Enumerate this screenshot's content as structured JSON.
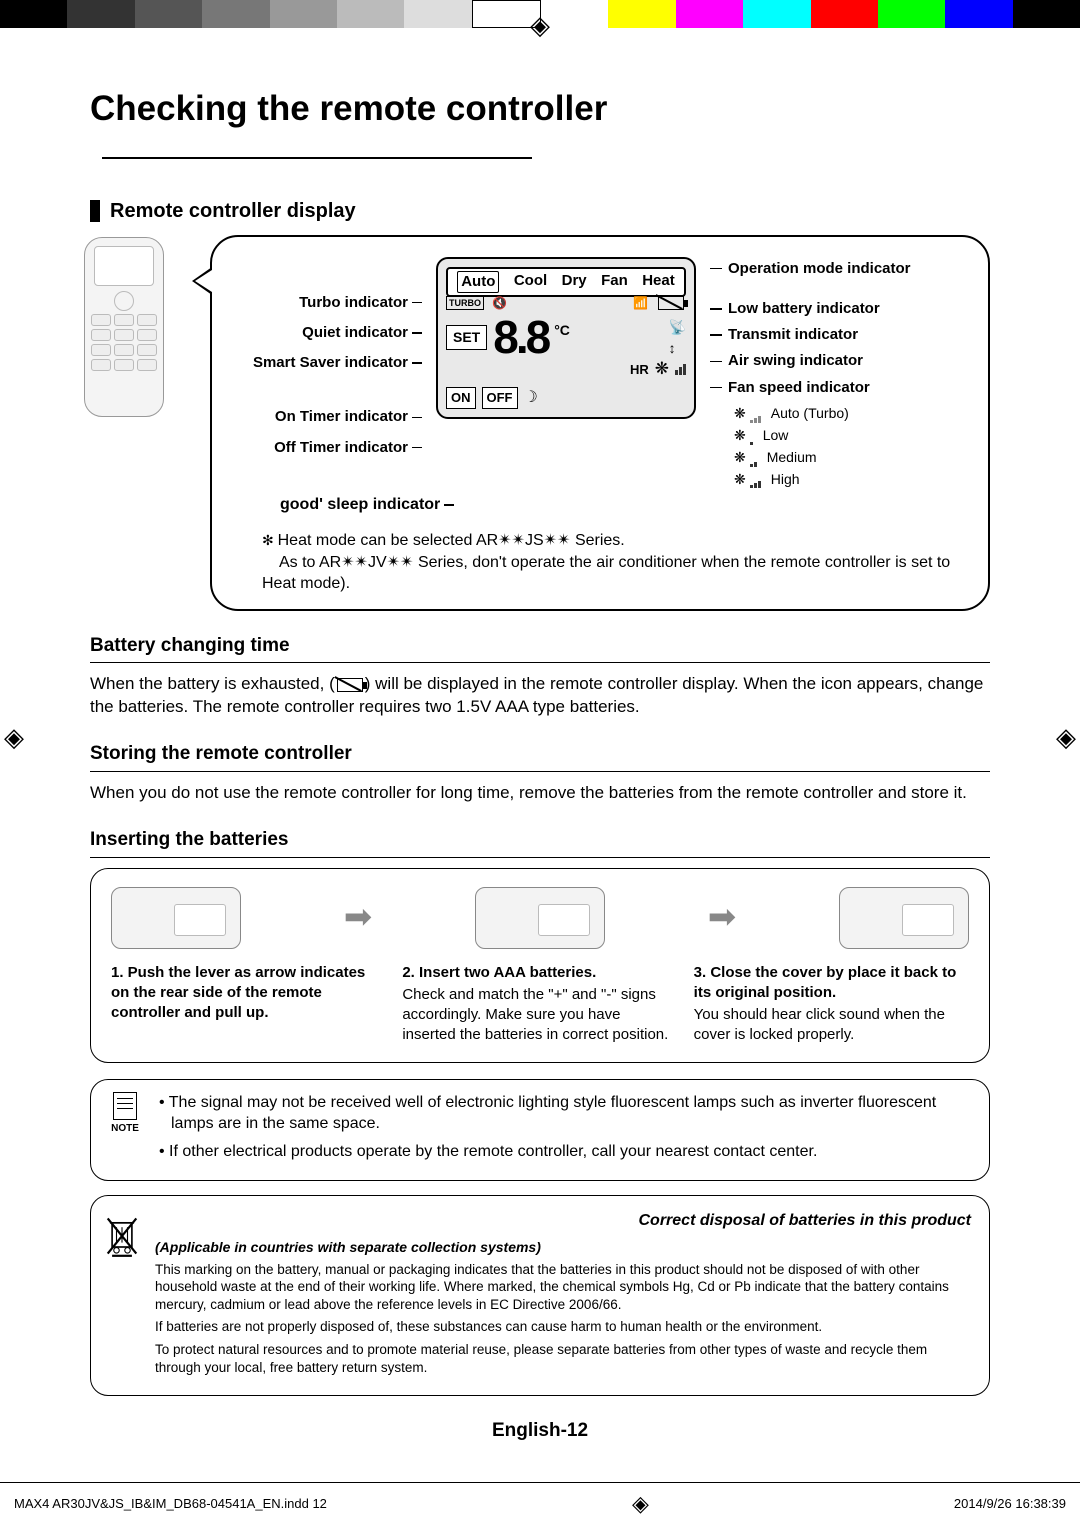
{
  "colorBar": [
    "#000000",
    "#333333",
    "#555555",
    "#777777",
    "#999999",
    "#bbbbbb",
    "#dddddd",
    "#ffffff",
    "#ffffff",
    "#ffff00",
    "#ff00ff",
    "#00ffff",
    "#ff0000",
    "#00ff00",
    "#0000ff",
    "#000000"
  ],
  "title": "Checking the remote controller",
  "sec1": {
    "title": "Remote controller display",
    "leftLabels": [
      "Turbo indicator",
      "Quiet indicator",
      "Smart Saver indicator",
      "On Timer indicator",
      "Off Timer indicator"
    ],
    "goodSleep": "good' sleep indicator",
    "lcd": {
      "modes": [
        "Auto",
        "Cool",
        "Dry",
        "Fan",
        "Heat"
      ],
      "set": "SET",
      "seg": "8.8",
      "unit": "°C",
      "hr": "HR",
      "on": "ON",
      "off": "OFF"
    },
    "rightLabels": [
      "Operation mode indicator",
      "Low battery indicator",
      "Transmit indicator",
      "Air swing indicator",
      "Fan speed indicator"
    ],
    "fanLevels": [
      {
        "label": "Auto (Turbo)",
        "bars": [
          3,
          5,
          7
        ]
      },
      {
        "label": "Low",
        "bars": [
          3
        ]
      },
      {
        "label": "Medium",
        "bars": [
          3,
          5
        ]
      },
      {
        "label": "High",
        "bars": [
          3,
          5,
          7
        ]
      }
    ],
    "heatNote1": "Heat mode can be selected AR✴✴JS✴✴ Series.",
    "heatNote2": "As to AR✴✴JV✴✴ Series, don't operate the air conditioner when the remote controller is set to Heat mode)."
  },
  "sec2": {
    "title": "Battery changing time",
    "p1a": "When the battery is exhausted, (",
    "p1b": ") will be displayed in the remote controller display. When the icon appears, change the batteries. The remote controller requires two 1.5V AAA type batteries."
  },
  "sec3": {
    "title": "Storing the remote controller",
    "p": "When you do not use the remote controller for long time, remove the batteries from the remote controller and store it."
  },
  "sec4": {
    "title": "Inserting the batteries",
    "steps": [
      {
        "b": "1.  Push the lever as arrow indicates on the rear side of the remote controller and pull up.",
        "sub": ""
      },
      {
        "b": "2.  Insert two AAA batteries.",
        "sub": "Check and match the \"+\" and \"-\" signs accordingly. Make sure you have inserted the batteries in correct position."
      },
      {
        "b": "3.  Close the cover by place it back to its original position.",
        "sub": "You should hear click sound when the cover is locked properly."
      }
    ]
  },
  "noteBox": {
    "label": "NOTE",
    "items": [
      "The signal may not be received well of electronic lighting style fluorescent lamps such as inverter fluorescent lamps are in the same space.",
      "If other electrical products operate by the remote controller, call your nearest contact center."
    ]
  },
  "disposal": {
    "title": "Correct disposal of batteries in this product",
    "sub": "(Applicable in countries with separate collection systems)",
    "p1": "This marking on the battery, manual or packaging indicates that the batteries in this product should not be disposed of with other household waste at the end of their working life. Where marked, the chemical symbols Hg, Cd or Pb indicate that the battery contains mercury, cadmium or lead above the reference levels in EC Directive 2006/66.",
    "p2": "If batteries are not properly disposed of, these substances can cause harm to human health or the environment.",
    "p3": "To protect natural resources and to promote material reuse, please separate batteries from other types of waste and recycle them through your local, free battery return system."
  },
  "pageNum": "English-12",
  "footer": {
    "file": "MAX4 AR30JV&JS_IB&IM_DB68-04541A_EN.indd   12",
    "date": "2014/9/26   16:38:39"
  }
}
